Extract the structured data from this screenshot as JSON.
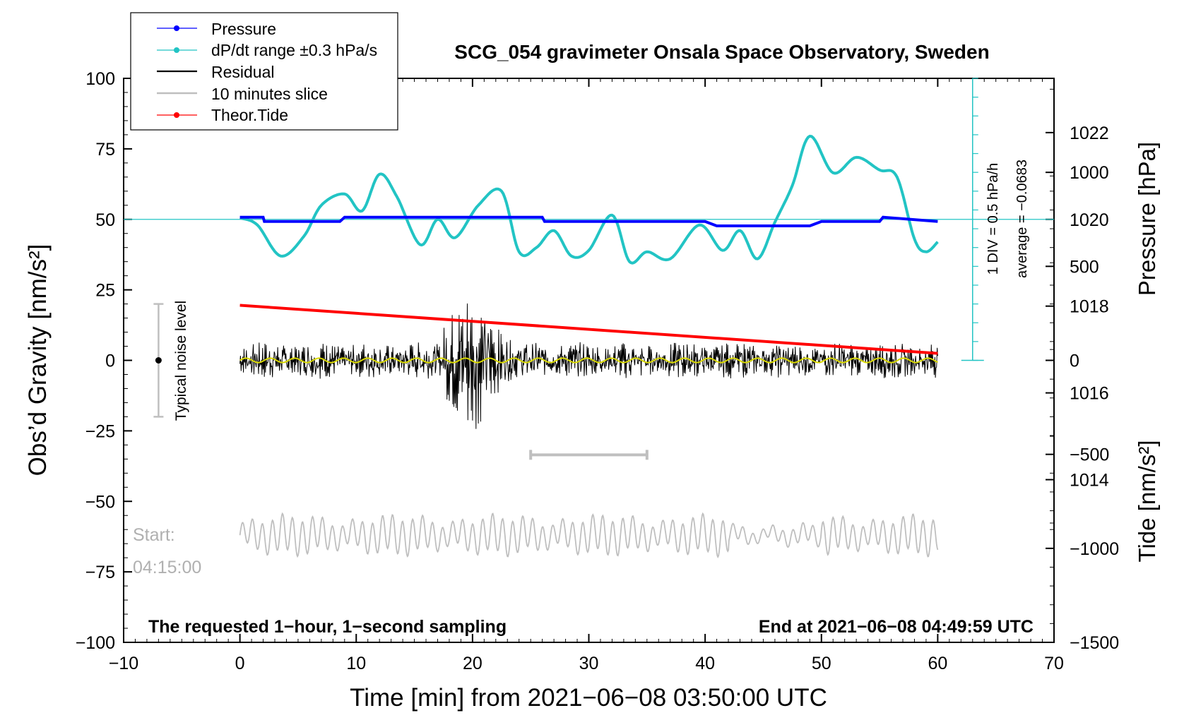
{
  "chart_data": {
    "type": "line",
    "title": "SCG_054 gravimeter Onsala Space Observatory, Sweden",
    "xlabel": "Time [min] from 2021−06−08 03:50:00 UTC",
    "ylabel_left": "Obs’d Gravity [nm/s²]",
    "ylabel_pressure": "Pressure [hPa]",
    "ylabel_tide": "Tide [nm/s²]",
    "xlim": [
      -10,
      70
    ],
    "ylim": [
      -100,
      100
    ],
    "pressure_lim": [
      1010.25,
      1023.25
    ],
    "tide_lim": [
      -1500,
      1500
    ],
    "x_ticks": [
      "−10",
      "0",
      "10",
      "20",
      "30",
      "40",
      "50",
      "60",
      "70"
    ],
    "y_ticks": [
      "100",
      "75",
      "50",
      "25",
      "0",
      "−25",
      "−50",
      "−75",
      "−100"
    ],
    "pressure_ticks": [
      "1022",
      "1020",
      "1018",
      "1016",
      "1014"
    ],
    "tide_ticks": [
      "1000",
      "500",
      "0",
      "−500",
      "−1000",
      "−1500"
    ],
    "legend": {
      "position": "top-left",
      "items": [
        "Pressure",
        "dP/dt range ±0.3 hPa/s",
        "Residual",
        "10 minutes slice",
        "Theor.Tide"
      ]
    },
    "colors": {
      "pressure": "#0000ff",
      "dpdt": "#22c4c4",
      "residual": "#000000",
      "smooth": "#d8d800",
      "slice": "#bfbfbf",
      "tide": "#ff0000"
    },
    "annotations": {
      "noise": "Typical noise level",
      "noise_range": [
        -20,
        20
      ],
      "noise_x": -7,
      "div": "1 DIV = 0.5 hPa/h",
      "average": "average = −0.0683",
      "start_label": "Start:",
      "start_time": "04:15:00",
      "bottom_left": "The requested 1−hour, 1−second sampling",
      "bottom_right": "End at 2021−06−08 04:49:59 UTC"
    },
    "slice_range": [
      25,
      35
    ],
    "slice_marker_y": -33.5,
    "dpdt_baseline": 50,
    "dpdt_axis": {
      "x": 63,
      "from": 100,
      "to": 0,
      "divisions": 15
    },
    "series": [
      {
        "name": "Pressure",
        "unit": "hPa",
        "x": [
          0,
          2,
          2.1,
          8.6,
          9,
          12,
          26,
          26.2,
          40,
          41,
          49,
          50,
          55,
          55.3,
          60
        ],
        "values": [
          1020.05,
          1020.05,
          1019.95,
          1019.95,
          1020.05,
          1020.05,
          1020.05,
          1019.95,
          1019.95,
          1019.85,
          1019.85,
          1019.95,
          1019.95,
          1020.05,
          1019.95
        ]
      },
      {
        "name": "dP/dt range",
        "unit": "nm/s² scale",
        "x": [
          0,
          1.5,
          3.5,
          5.5,
          7,
          9,
          10.5,
          12,
          13.5,
          15.5,
          17,
          18.5,
          20.5,
          22.5,
          24,
          25.5,
          27,
          28.5,
          30,
          32,
          33.5,
          35,
          37,
          39.5,
          41.5,
          43,
          44.5,
          46,
          47.5,
          49,
          51,
          53,
          55,
          56.5,
          58,
          59,
          60
        ],
        "values": [
          50.5,
          48,
          37,
          44,
          55,
          59,
          53,
          66,
          58,
          41,
          50,
          43.5,
          55,
          60,
          38.5,
          40,
          46,
          37,
          39,
          51.5,
          35,
          38.5,
          36,
          48,
          39,
          46,
          36,
          49,
          62,
          79.5,
          66.5,
          72,
          67.5,
          65,
          43,
          38.5,
          42
        ]
      },
      {
        "name": "Theor.Tide",
        "unit": "nm/s²",
        "x": [
          0,
          60
        ],
        "values": [
          293,
          37
        ]
      }
    ]
  }
}
